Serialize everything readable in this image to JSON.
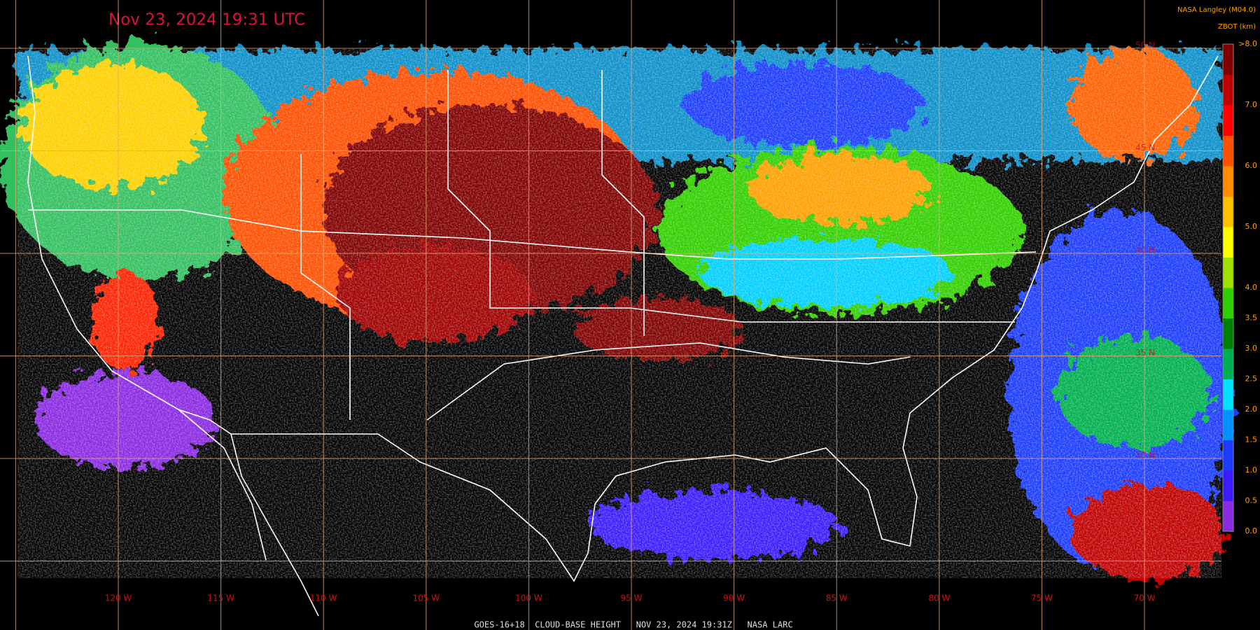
{
  "header": {
    "title": "Nov 23, 2024 19:31 UTC",
    "credit": "NASA Langley (M04.0)",
    "legend_title": "ZBOT (km)"
  },
  "legend": {
    "ticks": [
      "0.0",
      "0.5",
      "1.0",
      "1.5",
      "2.0",
      "2.5",
      "3.0",
      "3.5",
      "4.0",
      "5.0",
      "6.0",
      "7.0",
      ">8.0"
    ],
    "colors": [
      "#8a2be2",
      "#3a1cff",
      "#1e3cff",
      "#0090ff",
      "#00e0ff",
      "#00b050",
      "#008000",
      "#30d000",
      "#a0e000",
      "#ffff00",
      "#ffc000",
      "#ff8c00",
      "#ff5000",
      "#ff0000",
      "#c00000",
      "#800000"
    ]
  },
  "map": {
    "longitudes": [
      "120 W",
      "115 W",
      "110 W",
      "105 W",
      "100 W",
      "95 W",
      "90 W",
      "85 W",
      "80 W",
      "75 W",
      "70 W"
    ],
    "latitudes": [
      "50 N",
      "45 N",
      "40 N",
      "35 N",
      "30 N"
    ]
  },
  "footer": {
    "caption": "GOES-16+18  CLOUD-BASE HEIGHT   NOV 23, 2024 19:31Z   NASA LARC"
  }
}
